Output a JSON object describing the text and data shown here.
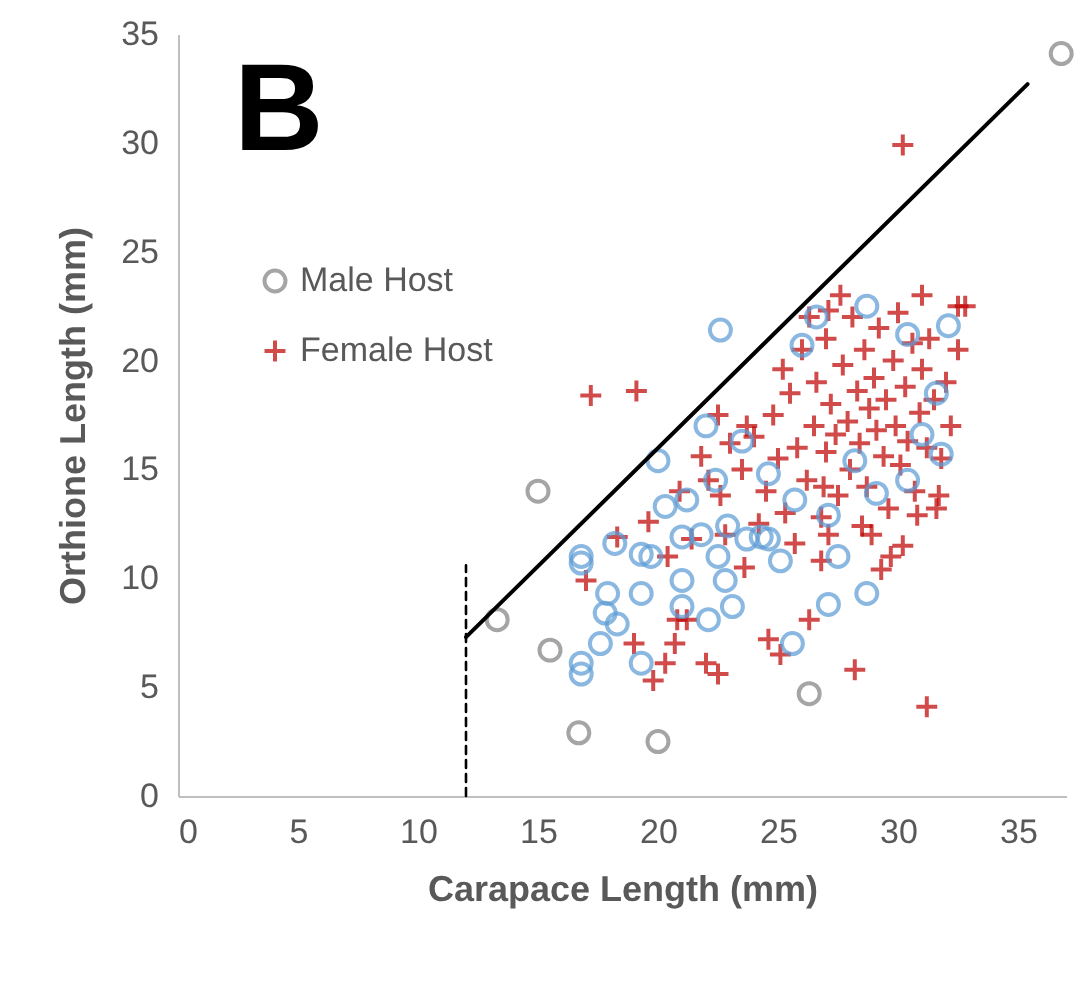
{
  "chart_data": {
    "type": "scatter",
    "title": "B",
    "xlabel": "Carapace Length (mm)",
    "ylabel": "Orthione Length (mm)",
    "xlim": [
      0,
      37
    ],
    "xticks": [
      0,
      5,
      10,
      15,
      20,
      25,
      30,
      35
    ],
    "ylim": [
      0,
      35
    ],
    "yticks": [
      0,
      5,
      10,
      15,
      20,
      25,
      30,
      35
    ],
    "grid": false,
    "legend": "top left",
    "series": [
      {
        "name": "Male Host",
        "color": "#7f7f7f",
        "marker": "circle",
        "x": [
          36.8,
          15.0,
          13.3,
          15.5,
          16.7,
          20.0,
          26.3
        ],
        "values": [
          34.1,
          14.0,
          8.1,
          6.7,
          2.9,
          2.5,
          4.7
        ]
      },
      {
        "color": "#5b9bd5",
        "marker": "circle",
        "x": [
          16.8,
          17.9,
          19.3,
          17.8,
          18.3,
          17.6,
          16.8,
          16.8,
          19.3,
          21.0,
          21.0,
          22.8,
          23.1,
          22.1,
          19.7,
          21.0,
          22.5,
          23.7,
          24.6,
          25.1,
          27.5,
          27.1,
          28.7,
          25.6,
          18.2,
          28.7,
          26.6,
          22.6,
          32.1,
          22.0,
          20.0,
          31.8,
          20.3,
          21.2,
          22.4,
          23.5,
          16.8,
          19.3,
          21.8,
          22.9,
          24.3,
          26.0,
          30.4,
          31.0,
          31.6,
          28.2,
          24.6,
          25.7,
          27.1,
          29.1,
          30.4
        ],
        "values": [
          10.7,
          9.3,
          9.3,
          8.4,
          7.9,
          7.0,
          6.1,
          5.6,
          6.1,
          9.9,
          8.7,
          9.9,
          8.7,
          8.1,
          11.0,
          11.9,
          11.0,
          11.8,
          11.8,
          10.8,
          11.0,
          8.8,
          9.3,
          7.0,
          11.6,
          22.5,
          22.0,
          21.4,
          21.6,
          17.0,
          15.4,
          15.7,
          13.3,
          13.6,
          14.5,
          16.3,
          11.0,
          11.1,
          12.0,
          12.4,
          11.9,
          20.7,
          21.2,
          16.6,
          18.5,
          15.4,
          14.8,
          13.6,
          12.9,
          13.9,
          14.5
        ]
      },
      {
        "name": "Female Host",
        "color": "#c00000",
        "marker": "cross",
        "x": [
          30.2,
          17.2,
          19.1,
          31.2,
          28.2,
          31.7,
          30.8,
          31.0,
          32.5,
          27.1,
          18.3,
          17.0,
          19.0,
          20.8,
          21.2,
          20.7,
          20.3,
          19.8,
          22.0,
          22.5,
          24.6,
          25.1,
          26.3,
          29.3,
          29.7,
          26.8,
          23.6,
          20.4,
          21.4,
          22.8,
          27.1,
          28.5,
          24.0,
          24.5,
          24.8,
          25.0,
          25.3,
          25.5,
          25.8,
          26.0,
          26.2,
          26.5,
          26.6,
          26.8,
          27.0,
          27.0,
          27.2,
          27.4,
          27.5,
          27.7,
          27.9,
          28.0,
          28.1,
          28.3,
          28.4,
          28.6,
          28.7,
          28.8,
          29.0,
          29.1,
          29.2,
          29.4,
          29.5,
          29.6,
          29.8,
          29.9,
          30.0,
          30.1,
          30.3,
          30.4,
          30.6,
          30.7,
          30.9,
          31.0,
          31.2,
          31.3,
          31.5,
          31.8,
          32.0,
          32.2,
          32.5,
          32.8,
          25.2,
          26.3,
          27.6,
          23.5,
          23.0,
          22.6,
          24.2,
          25.7,
          26.9,
          28.9,
          30.2,
          31.6,
          22.5,
          21.8,
          20.9,
          19.6,
          22.1,
          23.7
        ],
        "values": [
          29.9,
          18.4,
          18.6,
          4.1,
          5.8,
          13.8,
          12.9,
          23.0,
          22.5,
          22.3,
          11.9,
          9.9,
          7.0,
          8.1,
          8.1,
          7.0,
          6.1,
          5.3,
          6.1,
          5.6,
          7.2,
          6.5,
          8.1,
          10.4,
          11.0,
          10.8,
          10.5,
          11.0,
          11.8,
          12.0,
          12.0,
          12.4,
          16.5,
          14.0,
          17.5,
          15.5,
          13.0,
          18.5,
          16.0,
          20.5,
          14.5,
          17.0,
          19.0,
          12.8,
          15.8,
          21.0,
          18.0,
          16.6,
          13.8,
          19.8,
          17.2,
          15.0,
          22.0,
          18.6,
          16.2,
          20.5,
          14.2,
          17.8,
          19.2,
          16.8,
          21.5,
          15.6,
          18.2,
          13.2,
          20.0,
          17.0,
          22.2,
          15.2,
          18.8,
          16.3,
          20.8,
          14.0,
          17.6,
          19.6,
          16.0,
          21.0,
          18.2,
          15.5,
          19.0,
          17.0,
          20.5,
          22.5,
          19.6,
          22.0,
          23.0,
          15.0,
          16.2,
          13.8,
          12.5,
          11.6,
          14.2,
          12.0,
          11.5,
          13.2,
          17.5,
          15.6,
          14.0,
          12.6,
          14.5,
          17.0
        ]
      },
      {
        "type": "line",
        "color": "#000000",
        "line_style": "solid",
        "x": [
          12,
          35.4
        ],
        "values": [
          7.3,
          32.7
        ]
      },
      {
        "type": "line",
        "color": "#000000",
        "line_style": "dashed",
        "x": [
          12,
          12
        ],
        "values": [
          0,
          10.6
        ]
      }
    ]
  }
}
